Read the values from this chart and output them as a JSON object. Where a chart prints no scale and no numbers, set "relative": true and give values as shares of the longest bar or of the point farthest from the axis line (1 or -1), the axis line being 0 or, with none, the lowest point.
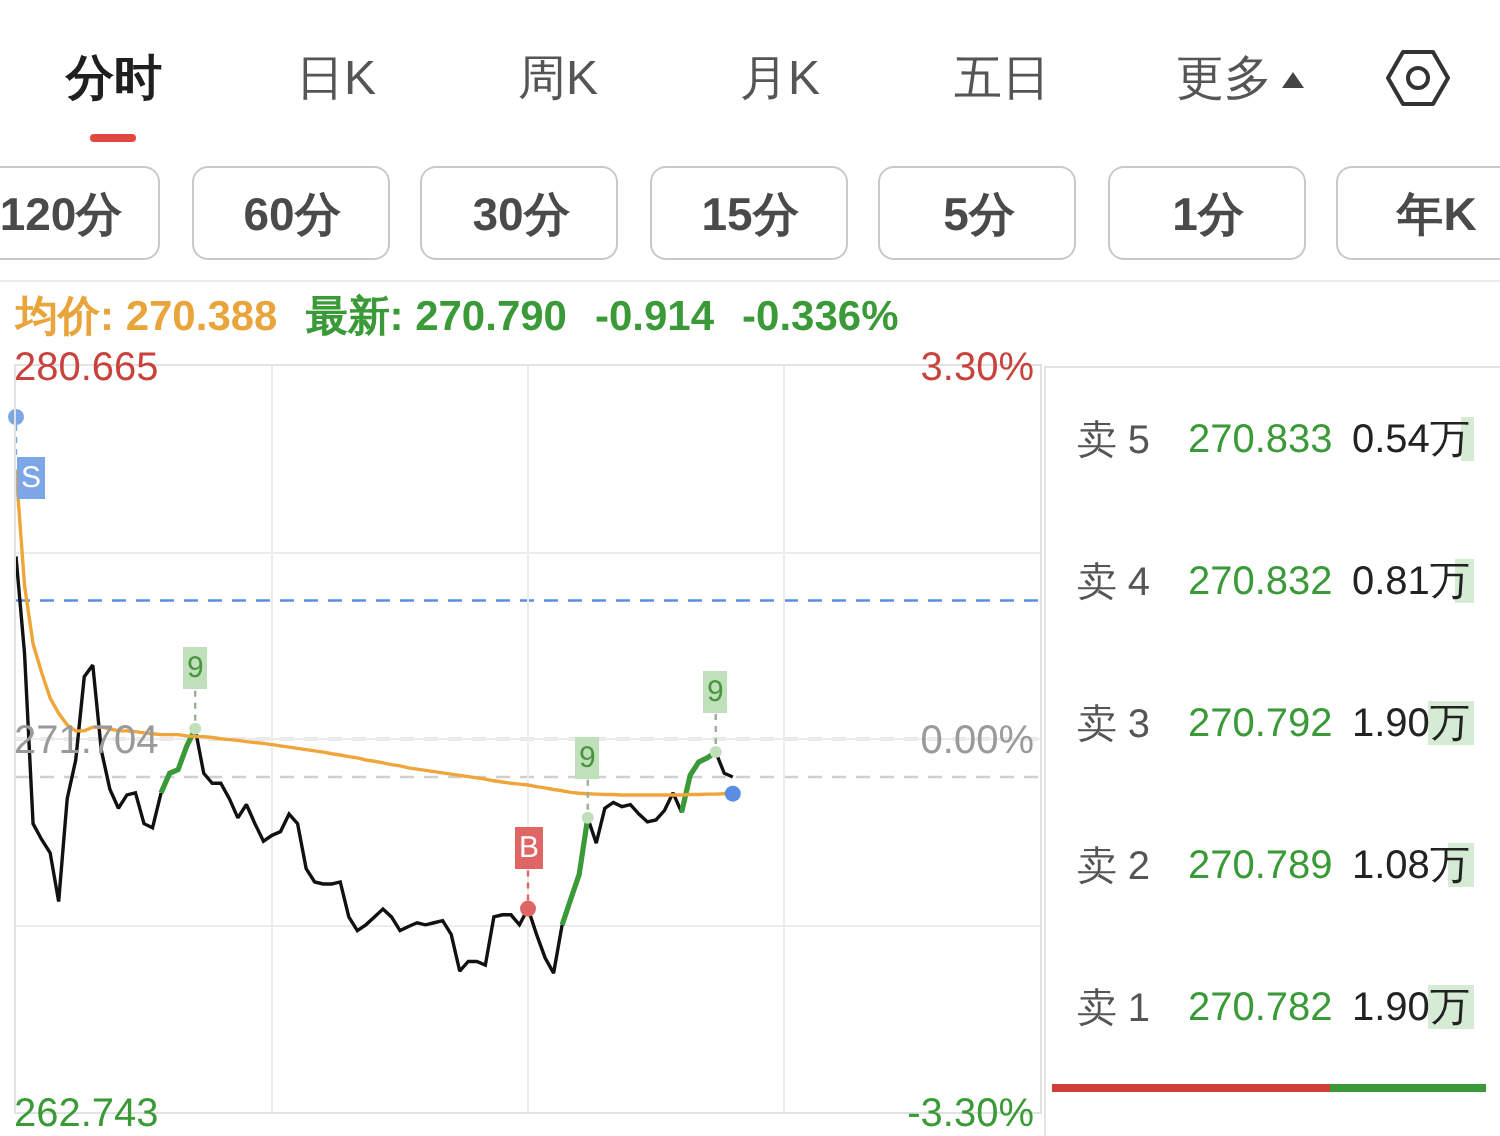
{
  "chart_data": [
    {
      "type": "other",
      "annotations": [
        "分时",
        "日K",
        "周K",
        "月K",
        "五日",
        "更多"
      ]
    },
    {
      "type": "other",
      "annotations": [
        "120分",
        "60分",
        "30分",
        "15分",
        "5分",
        "1分",
        "年K"
      ]
    },
    {
      "type": "line",
      "annotations": [
        "均价: 270.388",
        "最新: 270.790",
        "-0.914",
        "-0.336%"
      ],
      "categories": [
        null,
        null,
        null,
        null,
        null,
        null,
        null,
        null,
        null,
        null,
        null,
        null,
        null,
        null,
        null,
        null,
        null,
        null,
        null,
        null,
        null,
        null,
        null,
        null,
        null,
        null,
        null,
        null,
        null,
        null,
        null,
        null,
        null,
        null,
        null,
        null,
        null,
        null,
        null,
        null,
        null,
        null,
        null,
        null,
        null,
        null,
        null,
        null,
        null,
        null,
        null,
        null,
        null,
        null,
        null,
        null,
        null,
        null,
        null,
        null,
        null,
        null,
        null,
        null,
        null,
        null,
        null,
        null,
        null,
        null,
        null,
        null,
        null,
        null,
        null,
        null,
        null,
        null,
        null,
        null,
        null,
        null,
        null,
        null,
        null
      ],
      "series": [
        {
          "color": "#111111",
          "values": [
            276.09,
            273.76,
            269.67,
            269.29,
            268.97,
            267.8,
            270.27,
            271.2,
            273.2,
            273.48,
            271.43,
            270.5,
            270.04,
            270.36,
            270.41,
            269.67,
            269.57,
            270.41,
            null,
            null,
            null,
            271.95,
            270.88,
            270.64,
            270.64,
            270.27,
            269.81,
            270.13,
            269.67,
            269.25,
            269.39,
            269.48,
            269.9,
            269.67,
            268.59,
            268.27,
            268.22,
            268.22,
            268.27,
            267.43,
            267.1,
            267.24,
            267.43,
            267.62,
            267.43,
            267.1,
            267.2,
            267.29,
            267.24,
            267.29,
            267.34,
            267.01,
            266.13,
            266.36,
            266.36,
            266.27,
            267.43,
            267.48,
            267.48,
            267.24,
            267.63,
            267.01,
            266.45,
            266.08,
            267.24,
            null,
            null,
            269.81,
            269.2,
            270.04,
            270.18,
            270.08,
            270.13,
            269.9,
            269.71,
            269.76,
            269.99,
            270.41,
            269.94,
            null,
            null,
            null,
            271.39,
            270.88,
            270.79
          ]
        },
        {
          "color": "#3b9a38",
          "values": [
            null,
            null,
            null,
            null,
            null,
            null,
            null,
            null,
            null,
            null,
            null,
            null,
            null,
            null,
            null,
            null,
            null,
            270.41,
            270.88,
            270.97,
            271.53,
            271.95,
            null,
            null,
            null,
            null,
            null,
            null,
            null,
            null,
            null,
            null,
            null,
            null,
            null,
            null,
            null,
            null,
            null,
            null,
            null,
            null,
            null,
            null,
            null,
            null,
            null,
            null,
            null,
            null,
            null,
            null,
            null,
            null,
            null,
            null,
            null,
            null,
            null,
            null,
            null,
            null,
            null,
            null,
            267.24,
            267.85,
            268.45,
            269.81,
            null,
            null,
            null,
            null,
            null,
            null,
            null,
            null,
            null,
            null,
            269.94,
            270.83,
            271.15,
            271.25,
            271.39,
            null,
            null
          ]
        },
        {
          "color": "#efa53a",
          "values": [
            278.18,
            275.39,
            273.99,
            273.3,
            272.69,
            272.32,
            272.04,
            271.9,
            271.9,
            271.99,
            271.99,
            271.95,
            271.9,
            271.9,
            271.88,
            271.85,
            271.83,
            271.81,
            271.81,
            271.81,
            271.78,
            271.76,
            271.76,
            271.74,
            271.71,
            271.69,
            271.67,
            271.64,
            271.62,
            271.6,
            271.57,
            271.54,
            271.51,
            271.48,
            271.45,
            271.42,
            271.39,
            271.35,
            271.32,
            271.28,
            271.25,
            271.2,
            271.17,
            271.13,
            271.09,
            271.06,
            271.01,
            270.98,
            270.95,
            270.92,
            270.89,
            270.86,
            270.83,
            270.8,
            270.77,
            270.74,
            270.7,
            270.67,
            270.64,
            270.62,
            270.6,
            270.56,
            270.53,
            270.49,
            270.46,
            270.42,
            270.4,
            270.39,
            270.38,
            270.37,
            270.37,
            270.36,
            270.36,
            270.36,
            270.36,
            270.36,
            270.36,
            270.36,
            270.36,
            270.37,
            270.37,
            270.38,
            270.38,
            270.39,
            270.39
          ]
        },
        {
          "type": "scatter",
          "name": "9",
          "color": "#bfe0ba",
          "values": [
            null,
            null,
            null,
            null,
            null,
            null,
            null,
            null,
            null,
            null,
            null,
            null,
            null,
            null,
            null,
            null,
            null,
            null,
            null,
            null,
            null,
            271.95,
            null,
            null,
            null,
            null,
            null,
            null,
            null,
            null,
            null,
            null,
            null,
            null,
            null,
            null,
            null,
            null,
            null,
            null,
            null,
            null,
            null,
            null,
            null,
            null,
            null,
            null,
            null,
            null,
            null,
            null,
            null,
            null,
            null,
            null,
            null,
            null,
            null,
            null,
            null,
            null,
            null,
            null,
            null,
            null,
            null,
            269.81,
            null,
            null,
            null,
            null,
            null,
            null,
            null,
            null,
            null,
            null,
            null,
            null,
            null,
            null,
            271.39,
            null,
            null
          ]
        },
        {
          "type": "scatter",
          "name": "S",
          "color": "#7ca6e6",
          "values": [
            279.44,
            null,
            null,
            null,
            null,
            null,
            null,
            null,
            null,
            null,
            null,
            null,
            null,
            null,
            null,
            null,
            null,
            null,
            null,
            null,
            null,
            null,
            null,
            null,
            null,
            null,
            null,
            null,
            null,
            null,
            null,
            null,
            null,
            null,
            null,
            null,
            null,
            null,
            null,
            null,
            null,
            null,
            null,
            null,
            null,
            null,
            null,
            null,
            null,
            null,
            null,
            null,
            null,
            null,
            null,
            null,
            null,
            null,
            null,
            null,
            null,
            null,
            null,
            null,
            null,
            null,
            null,
            null,
            null,
            null,
            null,
            null,
            null,
            null,
            null,
            null,
            null,
            null,
            null,
            null,
            null,
            null,
            null,
            null,
            null
          ]
        },
        {
          "type": "scatter",
          "name": "B",
          "color": "#e06666",
          "values": [
            null,
            null,
            null,
            null,
            null,
            null,
            null,
            null,
            null,
            null,
            null,
            null,
            null,
            null,
            null,
            null,
            null,
            null,
            null,
            null,
            null,
            null,
            null,
            null,
            null,
            null,
            null,
            null,
            null,
            null,
            null,
            null,
            null,
            null,
            null,
            null,
            null,
            null,
            null,
            null,
            null,
            null,
            null,
            null,
            null,
            null,
            null,
            null,
            null,
            null,
            null,
            null,
            null,
            null,
            null,
            null,
            null,
            null,
            null,
            null,
            267.63,
            null,
            null,
            null,
            null,
            null,
            null,
            null,
            null,
            null,
            null,
            null,
            null,
            null,
            null,
            null,
            null,
            null,
            null,
            null,
            null,
            null,
            null,
            null,
            null
          ]
        },
        {
          "type": "scatter",
          "color": "#5b8de3",
          "values": [
            null,
            null,
            null,
            null,
            null,
            null,
            null,
            null,
            null,
            null,
            null,
            null,
            null,
            null,
            null,
            null,
            null,
            null,
            null,
            null,
            null,
            null,
            null,
            null,
            null,
            null,
            null,
            null,
            null,
            null,
            null,
            null,
            null,
            null,
            null,
            null,
            null,
            null,
            null,
            null,
            null,
            null,
            null,
            null,
            null,
            null,
            null,
            null,
            null,
            null,
            null,
            null,
            null,
            null,
            null,
            null,
            null,
            null,
            null,
            null,
            null,
            null,
            null,
            null,
            null,
            null,
            null,
            null,
            null,
            null,
            null,
            null,
            null,
            null,
            null,
            null,
            null,
            null,
            null,
            null,
            null,
            null,
            null,
            null,
            270.39
          ]
        }
      ],
      "ylim": [
        262.743,
        280.665
      ],
      "yticks": [
        262.743,
        {
          "value": 267.22,
          "label": null
        },
        271.704,
        {
          "value": 276.18,
          "label": null
        },
        280.665
      ],
      "y2lim": [
        -3.3,
        3.3
      ],
      "y2ticks": [
        {
          "value": -3.3,
          "label": "-3.30%"
        },
        {
          "value": 0,
          "label": "0.00%"
        },
        {
          "value": 3.3,
          "label": "3.30%"
        }
      ],
      "ref_lines": [
        {
          "axis": "y",
          "value": 275.03,
          "color": "#5a8de4",
          "line_style": "dashed"
        },
        {
          "axis": "y",
          "value": 271.704,
          "color": "#a0a0a0",
          "line_style": "dashed"
        },
        {
          "axis": "y",
          "value": 270.79,
          "color": "#cfcfcf",
          "line_style": "dashed"
        }
      ],
      "grid": true,
      "tick_labels": "y"
    },
    {
      "type": "bar",
      "orientation": "horizontal",
      "categories": [
        "卖 5",
        "卖 4",
        "卖 3",
        "卖 2",
        "卖 1"
      ],
      "series": [
        {
          "color": "#d6ebd3",
          "values": [
            0.54,
            0.81,
            1.9,
            1.08,
            1.9
          ],
          "value_labels": [
            "0.54万",
            "0.81万",
            "1.90万",
            "1.08万",
            "1.90万"
          ]
        }
      ],
      "annotations": [
        "270.833",
        "270.832",
        "270.792",
        "270.789",
        "270.782"
      ],
      "tick_labels": "y"
    },
    {
      "type": "bar",
      "orientation": "horizontal",
      "stacked": true,
      "relative": true,
      "categories": [
        null
      ],
      "series": [
        {
          "color": "#d0403b",
          "values": [
            0.64
          ]
        },
        {
          "color": "#3b9a38",
          "values": [
            0.36
          ]
        }
      ],
      "tick_labels": false
    }
  ]
}
